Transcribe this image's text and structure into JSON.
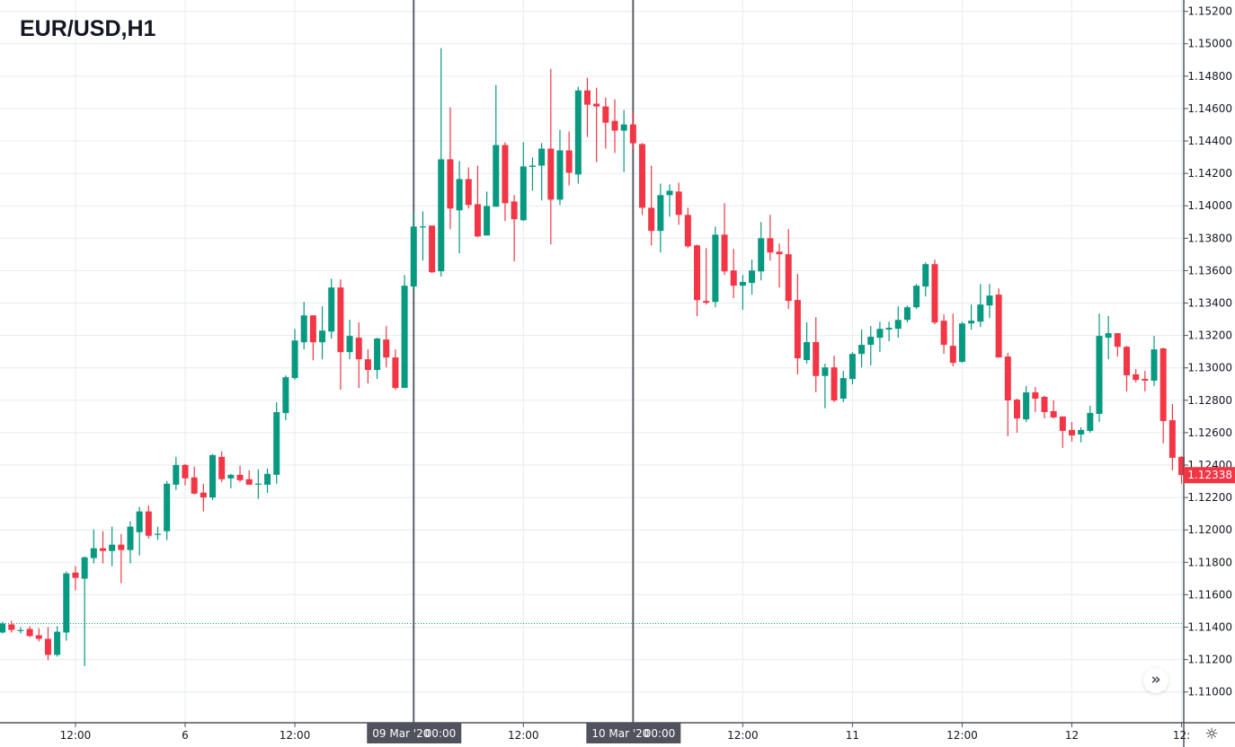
{
  "header": {
    "title": "EUR/USD,H1"
  },
  "colors": {
    "up": "#089981",
    "down": "#f23645",
    "grid": "#e6ecf0",
    "axis": "#50535e",
    "label_bg": "#50535e",
    "price_line": "#089981"
  },
  "controls": {
    "scroll_realtime_icon": "»",
    "settings_icon": "☼"
  },
  "chart_data": {
    "type": "candlestick",
    "title": "EUR/USD,H1",
    "xlabel": "",
    "ylabel": "",
    "ylim": [
      1.1081,
      1.1527
    ],
    "y_ticks": [
      "1.15200",
      "1.15000",
      "1.14800",
      "1.14600",
      "1.14400",
      "1.14200",
      "1.14000",
      "1.13800",
      "1.13600",
      "1.13400",
      "1.13200",
      "1.13000",
      "1.12800",
      "1.12600",
      "1.12400",
      "1.12200",
      "1.12000",
      "1.11800",
      "1.11600",
      "1.11400",
      "1.11200",
      "1.11000"
    ],
    "x_ticks": [
      {
        "bar": 8,
        "label": "12:00"
      },
      {
        "bar": 20,
        "label": "6"
      },
      {
        "bar": 32,
        "label": "12:00"
      },
      {
        "bar": 57,
        "label": "12:00"
      },
      {
        "bar": 81,
        "label": "12:00"
      },
      {
        "bar": 93,
        "label": "11"
      },
      {
        "bar": 105,
        "label": "12:00"
      },
      {
        "bar": 117,
        "label": "12"
      },
      {
        "bar": 129,
        "label": "12:"
      }
    ],
    "markers": [
      {
        "bar": 45,
        "date": "09 Mar '20",
        "time": "00:00"
      },
      {
        "bar": 69,
        "date": "10 Mar '20",
        "time": "00:00"
      }
    ],
    "current_price": {
      "value": 1.12338,
      "label": "1.12338"
    },
    "reference_line": 1.11422,
    "ohlc_columns": [
      "open",
      "high",
      "low",
      "close"
    ],
    "candles": [
      [
        1.11367,
        1.11433,
        1.11361,
        1.11422
      ],
      [
        1.11417,
        1.11439,
        1.11367,
        1.11383
      ],
      [
        1.11382,
        1.114,
        1.11361,
        1.11382
      ],
      [
        1.11389,
        1.11406,
        1.11339,
        1.11345
      ],
      [
        1.1135,
        1.11394,
        1.11312,
        1.11328
      ],
      [
        1.11328,
        1.114,
        1.11195,
        1.11229
      ],
      [
        1.11229,
        1.11406,
        1.11218,
        1.11372
      ],
      [
        1.11367,
        1.11743,
        1.11317,
        1.11732
      ],
      [
        1.11737,
        1.11776,
        1.11627,
        1.11704
      ],
      [
        1.11699,
        1.11837,
        1.1116,
        1.11831
      ],
      [
        1.11826,
        1.12003,
        1.11793,
        1.11887
      ],
      [
        1.11887,
        1.11992,
        1.11793,
        1.1187
      ],
      [
        1.1187,
        1.1202,
        1.11776,
        1.11909
      ],
      [
        1.11909,
        1.11975,
        1.11671,
        1.11876
      ],
      [
        1.11876,
        1.12053,
        1.11793,
        1.1202
      ],
      [
        1.11986,
        1.12142,
        1.11842,
        1.12114
      ],
      [
        1.12114,
        1.1215,
        1.11947,
        1.11964
      ],
      [
        1.11975,
        1.1202,
        1.11937,
        1.11976
      ],
      [
        1.11992,
        1.12302,
        1.11937,
        1.12285
      ],
      [
        1.12279,
        1.12451,
        1.12246,
        1.12401
      ],
      [
        1.12401,
        1.12407,
        1.12274,
        1.12318
      ],
      [
        1.12324,
        1.1239,
        1.12218,
        1.12224
      ],
      [
        1.1223,
        1.12285,
        1.12114,
        1.122
      ],
      [
        1.122,
        1.12468,
        1.12185,
        1.12462
      ],
      [
        1.12451,
        1.12484,
        1.12296,
        1.12313
      ],
      [
        1.12318,
        1.12346,
        1.12257,
        1.1234
      ],
      [
        1.1234,
        1.12396,
        1.12296,
        1.12307
      ],
      [
        1.12313,
        1.12368,
        1.12279,
        1.12279
      ],
      [
        1.12285,
        1.12374,
        1.12191,
        1.12286
      ],
      [
        1.12279,
        1.12379,
        1.12229,
        1.12346
      ],
      [
        1.1234,
        1.12788,
        1.12285,
        1.12727
      ],
      [
        1.12721,
        1.12954,
        1.12677,
        1.12942
      ],
      [
        1.12937,
        1.13241,
        1.12926,
        1.13169
      ],
      [
        1.13158,
        1.13407,
        1.13114,
        1.13324
      ],
      [
        1.13324,
        1.13324,
        1.13047,
        1.13158
      ],
      [
        1.13158,
        1.1338,
        1.13053,
        1.1323
      ],
      [
        1.13224,
        1.13551,
        1.1318,
        1.13496
      ],
      [
        1.13496,
        1.13546,
        1.12865,
        1.13097
      ],
      [
        1.13097,
        1.13297,
        1.13053,
        1.13197
      ],
      [
        1.13186,
        1.1328,
        1.12876,
        1.13053
      ],
      [
        1.13053,
        1.13114,
        1.12904,
        1.12987
      ],
      [
        1.12987,
        1.13186,
        1.12932,
        1.13181
      ],
      [
        1.13175,
        1.13258,
        1.13003,
        1.13064
      ],
      [
        1.13064,
        1.13114,
        1.12865,
        1.12876
      ],
      [
        1.12876,
        1.13573,
        1.12876,
        1.13507
      ],
      [
        1.13502,
        1.13955,
        1.1348,
        1.13872
      ],
      [
        1.13872,
        1.13966,
        1.13662,
        1.13873
      ],
      [
        1.13878,
        1.13878,
        1.13585,
        1.1359
      ],
      [
        1.13596,
        1.14973,
        1.13563,
        1.14287
      ],
      [
        1.14287,
        1.14608,
        1.13856,
        1.13983
      ],
      [
        1.13972,
        1.14276,
        1.13706,
        1.14165
      ],
      [
        1.14165,
        1.14237,
        1.13983,
        1.14005
      ],
      [
        1.1401,
        1.14248,
        1.13806,
        1.13811
      ],
      [
        1.13817,
        1.14088,
        1.13817,
        1.13999
      ],
      [
        1.13994,
        1.14746,
        1.13994,
        1.14375
      ],
      [
        1.14375,
        1.14392,
        1.13906,
        1.14016
      ],
      [
        1.14027,
        1.14066,
        1.13657,
        1.13917
      ],
      [
        1.13911,
        1.14392,
        1.13906,
        1.14243
      ],
      [
        1.1424,
        1.14298,
        1.14093,
        1.14248
      ],
      [
        1.14248,
        1.14387,
        1.14033,
        1.14353
      ],
      [
        1.14353,
        1.14845,
        1.13762,
        1.14038
      ],
      [
        1.14038,
        1.14469,
        1.14005,
        1.14342
      ],
      [
        1.14342,
        1.14458,
        1.14126,
        1.14204
      ],
      [
        1.14193,
        1.14735,
        1.14137,
        1.14712
      ],
      [
        1.14712,
        1.1479,
        1.14425,
        1.14624
      ],
      [
        1.1463,
        1.14729,
        1.1427,
        1.14613
      ],
      [
        1.14613,
        1.14668,
        1.14353,
        1.14513
      ],
      [
        1.14524,
        1.14657,
        1.14326,
        1.14464
      ],
      [
        1.14464,
        1.14591,
        1.14209,
        1.14502
      ],
      [
        1.14502,
        1.1458,
        1.14348,
        1.14386
      ],
      [
        1.14381,
        1.14387,
        1.13944,
        1.13988
      ],
      [
        1.13988,
        1.14248,
        1.13756,
        1.13845
      ],
      [
        1.13845,
        1.14137,
        1.13712,
        1.14066
      ],
      [
        1.14066,
        1.14132,
        1.13933,
        1.14093
      ],
      [
        1.14088,
        1.14143,
        1.13883,
        1.13944
      ],
      [
        1.13944,
        1.13988,
        1.13739,
        1.1375
      ],
      [
        1.13756,
        1.13761,
        1.13319,
        1.13418
      ],
      [
        1.13413,
        1.13739,
        1.13391,
        1.13402
      ],
      [
        1.13407,
        1.13872,
        1.13374,
        1.13822
      ],
      [
        1.13822,
        1.14016,
        1.13573,
        1.13595
      ],
      [
        1.13601,
        1.13734,
        1.1343,
        1.13507
      ],
      [
        1.13507,
        1.13573,
        1.13358,
        1.1353
      ],
      [
        1.13524,
        1.13668,
        1.13452,
        1.13601
      ],
      [
        1.13595,
        1.139,
        1.1354,
        1.138
      ],
      [
        1.138,
        1.13944,
        1.13662,
        1.13712
      ],
      [
        1.13717,
        1.13767,
        1.13496,
        1.13701
      ],
      [
        1.13701,
        1.13856,
        1.13363,
        1.13413
      ],
      [
        1.13419,
        1.13579,
        1.1296,
        1.13059
      ],
      [
        1.13048,
        1.1328,
        1.13026,
        1.13159
      ],
      [
        1.13159,
        1.13313,
        1.1285,
        1.1295
      ],
      [
        1.1295,
        1.13026,
        1.1275,
        1.13003
      ],
      [
        1.13003,
        1.13075,
        1.12788,
        1.12799
      ],
      [
        1.1281,
        1.12981,
        1.12788,
        1.12937
      ],
      [
        1.12931,
        1.13097,
        1.12898,
        1.13086
      ],
      [
        1.13086,
        1.13236,
        1.13003,
        1.13142
      ],
      [
        1.13142,
        1.13258,
        1.13015,
        1.13192
      ],
      [
        1.13186,
        1.13285,
        1.13097,
        1.13241
      ],
      [
        1.13236,
        1.13285,
        1.13164,
        1.13247
      ],
      [
        1.13241,
        1.1338,
        1.13186,
        1.13296
      ],
      [
        1.13296,
        1.13385,
        1.1328,
        1.13374
      ],
      [
        1.13374,
        1.13518,
        1.13363,
        1.13507
      ],
      [
        1.13502,
        1.13651,
        1.13441,
        1.1364
      ],
      [
        1.1364,
        1.13668,
        1.13269,
        1.1328
      ],
      [
        1.13291,
        1.1333,
        1.13086,
        1.13142
      ],
      [
        1.13136,
        1.13335,
        1.13009,
        1.13031
      ],
      [
        1.13037,
        1.13285,
        1.13031,
        1.13274
      ],
      [
        1.13274,
        1.13391,
        1.13236,
        1.13291
      ],
      [
        1.13285,
        1.13518,
        1.13252,
        1.13391
      ],
      [
        1.13385,
        1.13518,
        1.13308,
        1.13446
      ],
      [
        1.13452,
        1.1349,
        1.13064,
        1.13064
      ],
      [
        1.1307,
        1.13092,
        1.12578,
        1.12799
      ],
      [
        1.12804,
        1.1281,
        1.126,
        1.12688
      ],
      [
        1.12682,
        1.12888,
        1.12666,
        1.12849
      ],
      [
        1.12849,
        1.12882,
        1.12727,
        1.1281
      ],
      [
        1.12821,
        1.12827,
        1.12688,
        1.12727
      ],
      [
        1.12733,
        1.128,
        1.12688,
        1.12694
      ],
      [
        1.127,
        1.127,
        1.12506,
        1.12611
      ],
      [
        1.12617,
        1.12666,
        1.12545,
        1.12583
      ],
      [
        1.12589,
        1.12633,
        1.1254,
        1.12617
      ],
      [
        1.12611,
        1.12766,
        1.126,
        1.12722
      ],
      [
        1.12716,
        1.13335,
        1.12666,
        1.13197
      ],
      [
        1.13186,
        1.1332,
        1.13053,
        1.13214
      ],
      [
        1.13214,
        1.13214,
        1.1307,
        1.1313
      ],
      [
        1.1313,
        1.13136,
        1.12855,
        1.12954
      ],
      [
        1.1296,
        1.12993,
        1.1291,
        1.12926
      ],
      [
        1.12932,
        1.12981,
        1.12855,
        1.12921
      ],
      [
        1.12921,
        1.13197,
        1.12888,
        1.13114
      ],
      [
        1.1312,
        1.13125,
        1.12534,
        1.12672
      ],
      [
        1.12677,
        1.12777,
        1.12368,
        1.12445
      ],
      [
        1.12451,
        1.12456,
        1.12285,
        1.12338
      ]
    ]
  }
}
